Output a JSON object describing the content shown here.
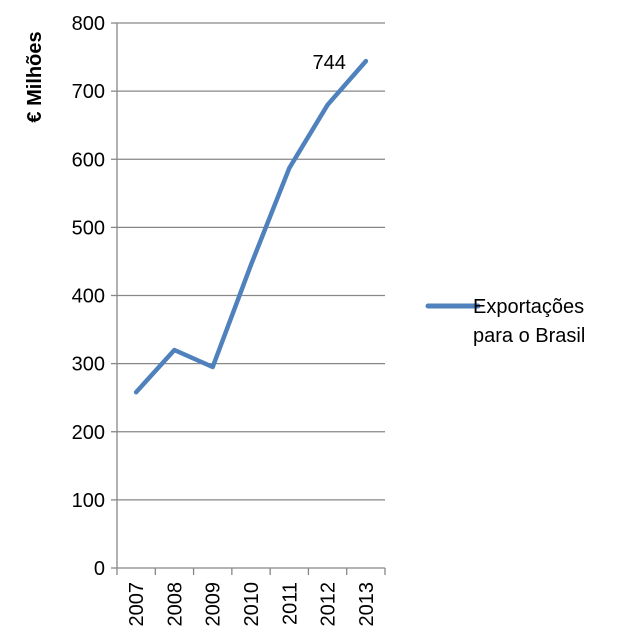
{
  "chart_data": {
    "type": "line",
    "ylabel": "€ Milhões",
    "xlabel": "",
    "categories": [
      "2007",
      "2008",
      "2009",
      "2010",
      "2011",
      "2012",
      "2013"
    ],
    "ylim": [
      0,
      800
    ],
    "yticks": [
      0,
      100,
      200,
      300,
      400,
      500,
      600,
      700,
      800
    ],
    "grid": true,
    "legend_position": "right",
    "series": [
      {
        "name": "Exportações para o Brasil",
        "legend_lines": [
          "Exportações",
          "para o Brasil"
        ],
        "color": "#4f81bd",
        "values": [
          258,
          320,
          295,
          445,
          587,
          680,
          744
        ]
      }
    ],
    "annotations": [
      {
        "text": "744",
        "series": 0,
        "index": 6
      }
    ]
  }
}
